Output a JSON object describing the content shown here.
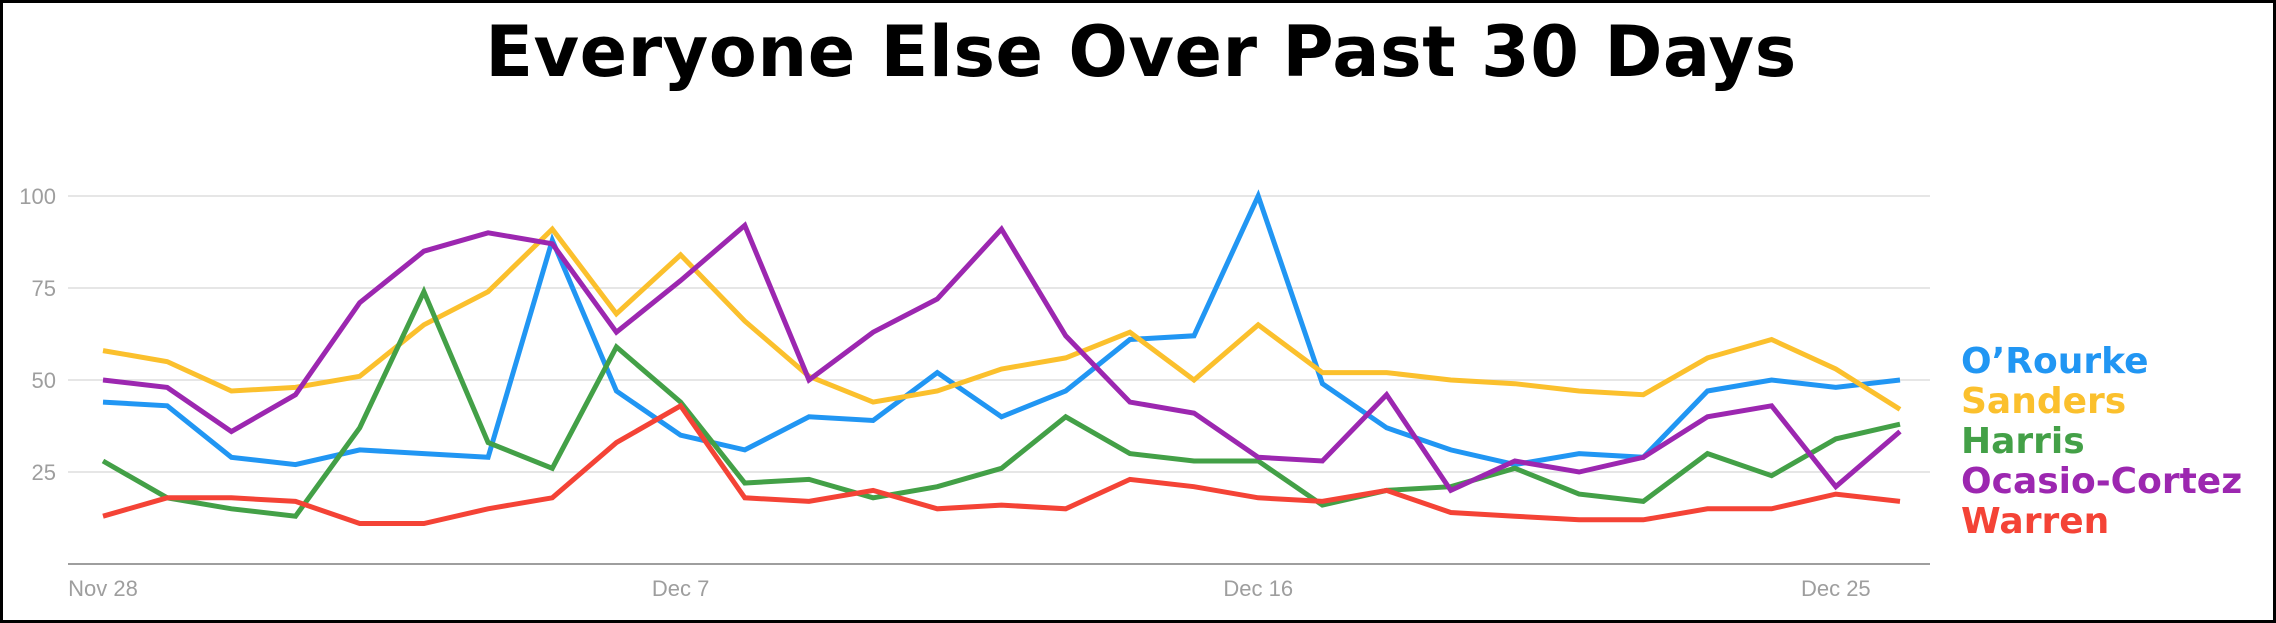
{
  "chart_data": {
    "type": "line",
    "title": "Everyone Else Over Past 30 Days",
    "xlabel": "",
    "ylabel": "",
    "x_tick_labels": [
      "Nov 28",
      "Dec 7",
      "Dec 16",
      "Dec 25"
    ],
    "x_tick_indices": [
      0,
      9,
      18,
      27
    ],
    "y_ticks": [
      25,
      50,
      75,
      100
    ],
    "ylim": [
      0,
      100
    ],
    "grid": true,
    "legend_position": "right",
    "series": [
      {
        "name": "O’Rourke",
        "color": "#2196f3",
        "values": [
          44,
          43,
          29,
          27,
          31,
          30,
          29,
          88,
          47,
          35,
          31,
          40,
          39,
          52,
          40,
          47,
          61,
          62,
          100,
          49,
          37,
          31,
          27,
          30,
          29,
          47,
          50,
          48,
          50
        ]
      },
      {
        "name": "Sanders",
        "color": "#fbc02d",
        "values": [
          58,
          55,
          47,
          48,
          51,
          65,
          74,
          91,
          68,
          84,
          66,
          51,
          44,
          47,
          53,
          56,
          63,
          50,
          65,
          52,
          52,
          50,
          49,
          47,
          46,
          56,
          61,
          53,
          42
        ]
      },
      {
        "name": "Harris",
        "color": "#43a047",
        "values": [
          28,
          18,
          15,
          13,
          37,
          74,
          33,
          26,
          59,
          44,
          22,
          23,
          18,
          21,
          26,
          40,
          30,
          28,
          28,
          16,
          20,
          21,
          26,
          19,
          17,
          30,
          24,
          34,
          38
        ]
      },
      {
        "name": "Ocasio-Cortez",
        "color": "#9c27b0",
        "values": [
          50,
          48,
          36,
          46,
          71,
          85,
          90,
          87,
          63,
          77,
          92,
          50,
          63,
          72,
          91,
          62,
          44,
          41,
          29,
          28,
          46,
          20,
          28,
          25,
          29,
          40,
          43,
          21,
          36
        ]
      },
      {
        "name": "Warren",
        "color": "#f44336",
        "values": [
          13,
          18,
          18,
          17,
          11,
          11,
          15,
          18,
          33,
          43,
          18,
          17,
          20,
          15,
          16,
          15,
          23,
          21,
          18,
          17,
          20,
          14,
          13,
          12,
          12,
          15,
          15,
          19,
          17
        ]
      }
    ]
  }
}
